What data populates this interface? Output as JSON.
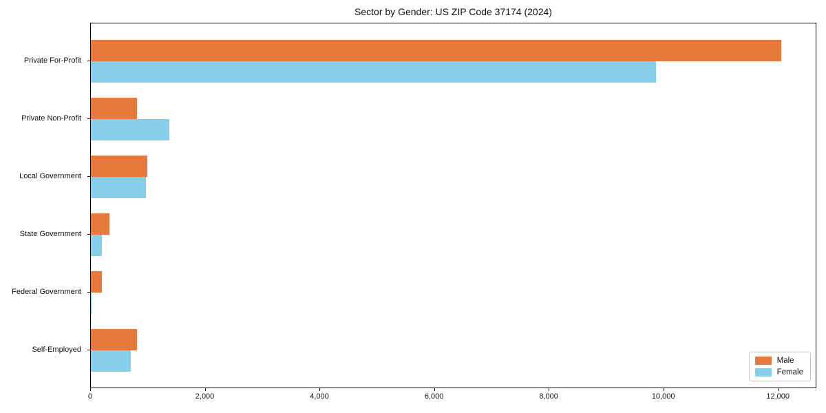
{
  "chart_data": {
    "type": "bar",
    "orientation": "horizontal",
    "title": "Sector by Gender: US ZIP Code 37174 (2024)",
    "categories": [
      "Private For-Profit",
      "Private Non-Profit",
      "Local Government",
      "State Government",
      "Federal Government",
      "Self-Employed"
    ],
    "series": [
      {
        "name": "Male",
        "color": "#e8793c",
        "values": [
          12050,
          800,
          985,
          325,
          190,
          805
        ]
      },
      {
        "name": "Female",
        "color": "#87ceeb",
        "values": [
          9860,
          1370,
          960,
          190,
          15,
          700
        ]
      }
    ],
    "xlabel": "",
    "ylabel": "",
    "xlim": [
      0,
      12670
    ],
    "xticks": [
      0,
      2000,
      4000,
      6000,
      8000,
      10000,
      12000
    ],
    "xtick_labels": [
      "0",
      "2,000",
      "4,000",
      "6,000",
      "8,000",
      "10,000",
      "12,000"
    ],
    "grid": false,
    "legend": {
      "position": "lower right"
    }
  }
}
